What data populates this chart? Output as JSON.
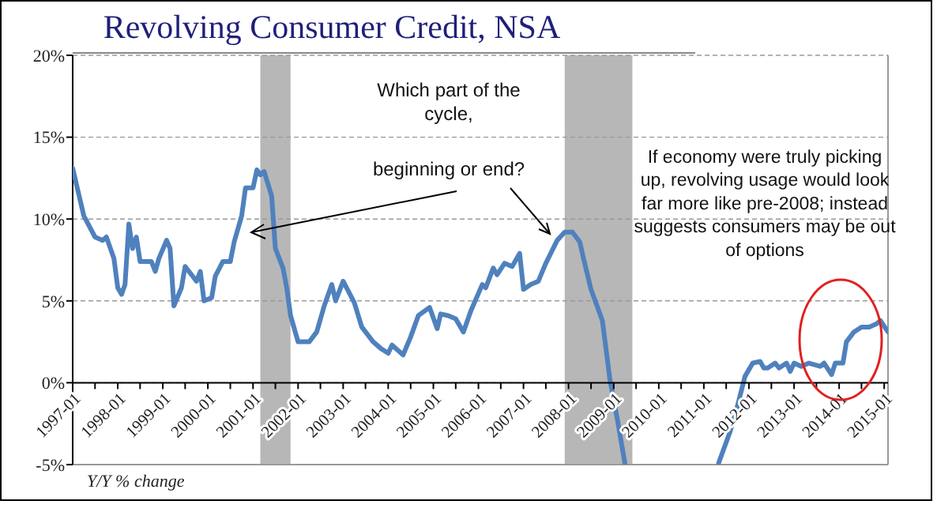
{
  "chart_data": {
    "type": "line",
    "title": "Revolving Consumer Credit, NSA",
    "x": [
      "1997-01",
      "1997-02",
      "1997-04",
      "1997-07",
      "1997-09",
      "1997-10",
      "1997-12",
      "1998-01",
      "1998-02",
      "1998-03",
      "1998-04",
      "1998-05",
      "1998-06",
      "1998-07",
      "1998-10",
      "1998-11",
      "1998-12",
      "1999-02",
      "1999-03",
      "1999-04",
      "1999-06",
      "1999-07",
      "1999-09",
      "1999-10",
      "1999-11",
      "1999-12",
      "2000-02",
      "2000-03",
      "2000-05",
      "2000-07",
      "2000-08",
      "2000-10",
      "2000-11",
      "2001-01",
      "2001-02",
      "2001-03",
      "2001-04",
      "2001-06",
      "2001-07",
      "2001-09",
      "2001-10",
      "2001-11",
      "2002-01",
      "2002-04",
      "2002-06",
      "2002-08",
      "2002-10",
      "2002-11",
      "2003-01",
      "2003-04",
      "2003-06",
      "2003-09",
      "2003-11",
      "2004-01",
      "2004-02",
      "2004-05",
      "2004-07",
      "2004-09",
      "2004-12",
      "2005-02",
      "2005-03",
      "2005-05",
      "2005-07",
      "2005-09",
      "2005-11",
      "2006-02",
      "2006-03",
      "2006-05",
      "2006-06",
      "2006-08",
      "2006-10",
      "2006-12",
      "2007-01",
      "2007-03",
      "2007-05",
      "2007-07",
      "2007-10",
      "2007-12",
      "2008-02",
      "2008-04",
      "2008-05",
      "2008-07",
      "2008-10",
      "2008-12",
      "2009-02",
      "2009-04",
      "2009-05",
      "2011-04",
      "2011-05",
      "2011-08",
      "2011-10",
      "2011-12",
      "2012-02",
      "2012-04",
      "2012-05",
      "2012-06",
      "2012-08",
      "2012-09",
      "2012-11",
      "2012-12",
      "2013-01",
      "2013-03",
      "2013-05",
      "2013-08",
      "2013-09",
      "2013-11",
      "2013-12",
      "2014-02",
      "2014-03",
      "2014-05",
      "2014-07",
      "2014-09",
      "2014-11",
      "2014-12",
      "2015-02"
    ],
    "series": [
      {
        "color": "#4f81bd",
        "values": [
          13.1,
          12.1,
          10.2,
          8.9,
          8.7,
          8.9,
          7.6,
          5.8,
          5.4,
          6.0,
          9.7,
          8.2,
          8.9,
          7.4,
          7.4,
          6.8,
          7.6,
          8.7,
          8.2,
          4.7,
          5.8,
          7.1,
          6.5,
          6.2,
          6.8,
          5.0,
          5.2,
          6.5,
          7.4,
          7.4,
          8.6,
          10.2,
          11.9,
          11.9,
          13.0,
          12.7,
          12.9,
          11.4,
          8.2,
          7.0,
          5.8,
          4.1,
          2.5,
          2.5,
          3.1,
          4.7,
          6.0,
          5.0,
          6.2,
          4.9,
          3.4,
          2.5,
          2.1,
          1.8,
          2.3,
          1.7,
          2.8,
          4.1,
          4.6,
          3.3,
          4.2,
          4.1,
          3.9,
          3.1,
          4.4,
          6.0,
          5.8,
          7.0,
          6.6,
          7.3,
          7.1,
          7.9,
          5.7,
          6.0,
          6.2,
          7.3,
          8.7,
          9.2,
          9.2,
          8.6,
          7.6,
          5.7,
          3.8,
          0.2,
          -2.3,
          -4.9,
          null,
          null,
          -4.9,
          -3.0,
          -1.4,
          0.4,
          1.2,
          1.3,
          0.9,
          0.9,
          1.2,
          0.9,
          1.2,
          0.7,
          1.2,
          1.0,
          1.2,
          1.0,
          1.2,
          0.5,
          1.2,
          1.2,
          2.5,
          3.1,
          3.4,
          3.4,
          3.6,
          3.8,
          3.1
        ]
      }
    ],
    "xlim": [
      "1997-01",
      "2015-02"
    ],
    "xticks": [
      {
        "value": "1997-01",
        "label": "1997-01"
      },
      {
        "value": "1997-07",
        "label": null
      },
      {
        "value": "1998-01",
        "label": "1998-01"
      },
      {
        "value": "1998-07",
        "label": null
      },
      {
        "value": "1999-01",
        "label": "1999-01"
      },
      {
        "value": "1999-07",
        "label": null
      },
      {
        "value": "2000-01",
        "label": "2000-01"
      },
      {
        "value": "2000-07",
        "label": null
      },
      {
        "value": "2001-01",
        "label": "2001-01"
      },
      {
        "value": "2001-07",
        "label": null
      },
      {
        "value": "2002-01",
        "label": "2002-01"
      },
      {
        "value": "2002-07",
        "label": null
      },
      {
        "value": "2003-01",
        "label": "2003-01"
      },
      {
        "value": "2003-07",
        "label": null
      },
      {
        "value": "2004-01",
        "label": "2004-01"
      },
      {
        "value": "2004-07",
        "label": null
      },
      {
        "value": "2005-01",
        "label": "2005-01"
      },
      {
        "value": "2005-07",
        "label": null
      },
      {
        "value": "2006-01",
        "label": "2006-01"
      },
      {
        "value": "2006-07",
        "label": null
      },
      {
        "value": "2007-01",
        "label": "2007-01"
      },
      {
        "value": "2007-07",
        "label": null
      },
      {
        "value": "2008-01",
        "label": "2008-01"
      },
      {
        "value": "2008-07",
        "label": null
      },
      {
        "value": "2009-01",
        "label": "2009-01"
      },
      {
        "value": "2009-07",
        "label": null
      },
      {
        "value": "2010-01",
        "label": "2010-01"
      },
      {
        "value": "2010-07",
        "label": null
      },
      {
        "value": "2011-01",
        "label": "2011-01"
      },
      {
        "value": "2011-07",
        "label": null
      },
      {
        "value": "2012-01",
        "label": "2012-01"
      },
      {
        "value": "2012-07",
        "label": null
      },
      {
        "value": "2013-01",
        "label": "2013-01"
      },
      {
        "value": "2013-07",
        "label": null
      },
      {
        "value": "2014-01",
        "label": "2014-01"
      },
      {
        "value": "2014-07",
        "label": null
      },
      {
        "value": "2015-01",
        "label": "2015-01"
      }
    ],
    "ylim": [
      -5,
      20
    ],
    "yticks": [
      {
        "value": -5,
        "label": "-5%"
      },
      {
        "value": 0,
        "label": "0%"
      },
      {
        "value": 5,
        "label": "5%"
      },
      {
        "value": 10,
        "label": "10%"
      },
      {
        "value": 15,
        "label": "15%"
      },
      {
        "value": 20,
        "label": "20%"
      }
    ],
    "grid": "y",
    "bands": [
      {
        "axis": "x",
        "from": "2001-03",
        "to": "2001-11",
        "color": "#b7b7b7"
      },
      {
        "axis": "x",
        "from": "2007-12",
        "to": "2009-06",
        "color": "#b7b7b7"
      }
    ],
    "annotations": [
      "Which part of the cycle,",
      "beginning or end?",
      "If economy were truly picking up, revolving usage would look far more like pre-2008; instead suggests consumers may be out of options",
      "Y/Y % change"
    ]
  }
}
